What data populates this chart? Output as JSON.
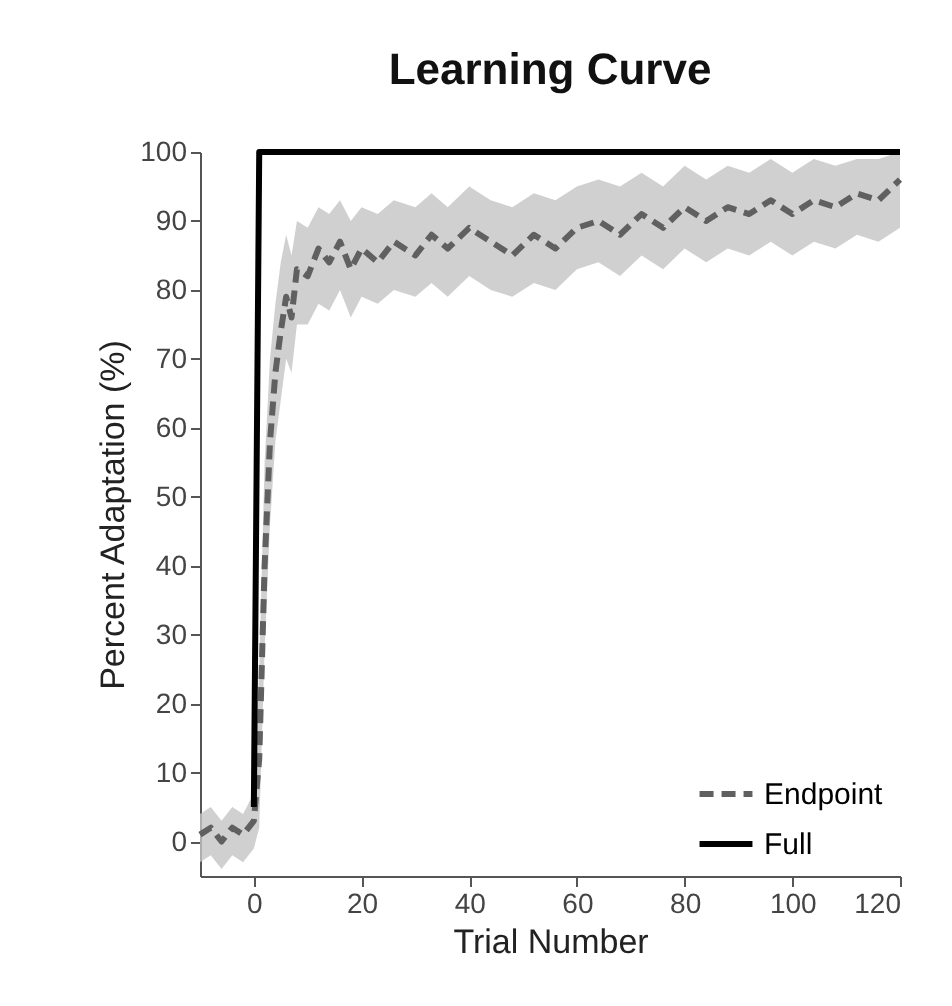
{
  "chart_data": {
    "type": "line",
    "title": "Learning Curve",
    "xlabel": "Trial Number",
    "ylabel": "Percent Adaptation (%)",
    "xlim": [
      -10,
      120
    ],
    "ylim": [
      -5,
      100
    ],
    "xticks": [
      0,
      20,
      40,
      60,
      80,
      100,
      120
    ],
    "yticks": [
      0,
      10,
      20,
      30,
      40,
      50,
      60,
      70,
      80,
      90,
      100
    ],
    "legend": "bottom right",
    "series": [
      {
        "name": "Endpoint",
        "color": "#606060",
        "line_style": "dashed",
        "x": [
          -10,
          -8,
          -6,
          -4,
          -2,
          0,
          1,
          2,
          3,
          4,
          5,
          6,
          7,
          8,
          10,
          12,
          14,
          16,
          18,
          20,
          23,
          26,
          30,
          33,
          36,
          40,
          44,
          48,
          52,
          56,
          60,
          64,
          68,
          72,
          76,
          80,
          84,
          88,
          92,
          96,
          100,
          104,
          108,
          112,
          116,
          120
        ],
        "values": [
          1,
          2,
          0,
          2,
          1,
          3,
          12,
          40,
          58,
          68,
          74,
          79,
          76,
          83,
          82,
          86,
          84,
          87,
          83,
          86,
          84,
          87,
          85,
          88,
          86,
          89,
          87,
          85,
          88,
          86,
          89,
          90,
          88,
          91,
          89,
          92,
          90,
          92,
          91,
          93,
          91,
          93,
          92,
          94,
          93,
          96
        ],
        "lower": [
          -3,
          -2,
          -4,
          -2,
          -3,
          -1,
          2,
          28,
          46,
          58,
          64,
          70,
          68,
          75,
          75,
          78,
          77,
          80,
          76,
          79,
          78,
          80,
          79,
          81,
          79,
          82,
          80,
          79,
          81,
          80,
          83,
          84,
          82,
          85,
          83,
          86,
          84,
          86,
          85,
          87,
          85,
          87,
          86,
          88,
          87,
          89
        ],
        "upper": [
          4,
          5,
          3,
          5,
          4,
          7,
          25,
          55,
          70,
          78,
          84,
          88,
          85,
          90,
          89,
          92,
          91,
          93,
          90,
          92,
          91,
          93,
          92,
          94,
          92,
          95,
          93,
          92,
          94,
          93,
          95,
          96,
          95,
          97,
          95,
          98,
          96,
          98,
          97,
          99,
          97,
          99,
          98,
          99,
          99,
          100
        ]
      },
      {
        "name": "Full",
        "color": "#000000",
        "line_style": "solid",
        "x": [
          0,
          1,
          120
        ],
        "values": [
          5,
          100,
          100
        ]
      }
    ]
  }
}
